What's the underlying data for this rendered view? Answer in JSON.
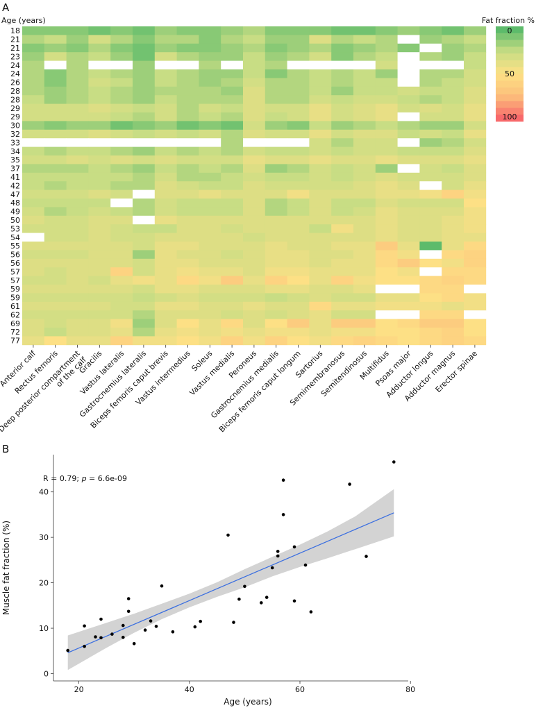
{
  "panel_a": {
    "label": "A",
    "row_axis_title": "Age (years)",
    "legend": {
      "title": "Fat fraction %",
      "ticks": [
        "0",
        "50",
        "100"
      ]
    }
  },
  "panel_b": {
    "label": "B",
    "annotation_prefix": "R = 0.79; ",
    "annotation_p": "p",
    "annotation_suffix": " = 6.6e-09"
  },
  "chart_data": [
    {
      "type": "heatmap",
      "title": "",
      "ylabel": "Age (years)",
      "value_label": "Fat fraction %",
      "color_scale": {
        "min": 0,
        "max": 100,
        "colors": [
          "#5dbb6b",
          "#c8dd84",
          "#fde085",
          "#fcbf7b",
          "#f8696b"
        ]
      },
      "rows": [
        "18",
        "21",
        "21",
        "23",
        "24",
        "24",
        "26",
        "28",
        "28",
        "29",
        "29",
        "30",
        "32",
        "33",
        "34",
        "35",
        "37",
        "41",
        "42",
        "47",
        "48",
        "49",
        "50",
        "53",
        "54",
        "55",
        "56",
        "56",
        "57",
        "57",
        "59",
        "59",
        "61",
        "62",
        "69",
        "72",
        "77"
      ],
      "columns": [
        "Anterior calf",
        "Rectus femoris",
        "Deep posterior compartment of the calf",
        "Gracilis",
        "Vastus lateralis",
        "Gastrocnemius lateralis",
        "Biceps femoris caput brevis",
        "Vastus intermedius",
        "Soleus",
        "Vastus medialis",
        "Peroneus",
        "Gastrocnemius medialis",
        "Biceps femoris caput longum",
        "Sartorius",
        "Semimembranosus",
        "Semitendinosus",
        "Multifidus",
        "Psoas major",
        "Adductor longus",
        "Adductor magnus",
        "Erector spinae"
      ],
      "missing_cells": [
        [
          4,
          1
        ],
        [
          4,
          3
        ],
        [
          4,
          4
        ],
        [
          4,
          6
        ],
        [
          4,
          7
        ],
        [
          4,
          9
        ],
        [
          4,
          12
        ],
        [
          4,
          13
        ],
        [
          4,
          14
        ],
        [
          4,
          15
        ],
        [
          4,
          17
        ],
        [
          4,
          18
        ],
        [
          4,
          19
        ],
        [
          2,
          18
        ],
        [
          1,
          17
        ],
        [
          3,
          17
        ],
        [
          5,
          17
        ],
        [
          6,
          17
        ],
        [
          10,
          17
        ],
        [
          13,
          0
        ],
        [
          13,
          1
        ],
        [
          13,
          2
        ],
        [
          13,
          3
        ],
        [
          13,
          4
        ],
        [
          13,
          5
        ],
        [
          13,
          6
        ],
        [
          13,
          7
        ],
        [
          13,
          8
        ],
        [
          13,
          10
        ],
        [
          13,
          11
        ],
        [
          13,
          12
        ],
        [
          13,
          17
        ],
        [
          16,
          17
        ],
        [
          18,
          18
        ],
        [
          19,
          5
        ],
        [
          20,
          4
        ],
        [
          22,
          5
        ],
        [
          24,
          0
        ],
        [
          26,
          18
        ],
        [
          28,
          18
        ],
        [
          30,
          16
        ],
        [
          30,
          17
        ],
        [
          30,
          20
        ],
        [
          33,
          16
        ],
        [
          33,
          17
        ],
        [
          33,
          20
        ]
      ],
      "values": [
        [
          10,
          10,
          10,
          5,
          10,
          5,
          15,
          10,
          10,
          15,
          20,
          10,
          10,
          10,
          5,
          5,
          10,
          15,
          10,
          5,
          15
        ],
        [
          20,
          25,
          15,
          30,
          20,
          10,
          20,
          20,
          10,
          20,
          25,
          15,
          15,
          35,
          20,
          25,
          20,
          20,
          15,
          20,
          25
        ],
        [
          10,
          15,
          10,
          20,
          10,
          5,
          15,
          10,
          10,
          15,
          20,
          10,
          15,
          20,
          10,
          15,
          20,
          10,
          10,
          15,
          20
        ],
        [
          15,
          30,
          20,
          25,
          15,
          5,
          30,
          20,
          15,
          15,
          25,
          15,
          20,
          30,
          10,
          20,
          25,
          20,
          20,
          15,
          25
        ],
        [
          20,
          0,
          20,
          0,
          0,
          15,
          0,
          0,
          20,
          0,
          25,
          20,
          0,
          0,
          0,
          0,
          30,
          0,
          0,
          0,
          25
        ],
        [
          20,
          10,
          20,
          25,
          20,
          15,
          25,
          20,
          15,
          15,
          25,
          10,
          20,
          25,
          20,
          25,
          15,
          25,
          20,
          20,
          30
        ],
        [
          20,
          10,
          20,
          30,
          25,
          15,
          25,
          20,
          15,
          20,
          30,
          20,
          20,
          25,
          20,
          25,
          25,
          20,
          20,
          25,
          30
        ],
        [
          20,
          15,
          20,
          25,
          20,
          15,
          20,
          20,
          20,
          15,
          35,
          20,
          20,
          25,
          15,
          25,
          25,
          30,
          25,
          25,
          35
        ],
        [
          25,
          15,
          20,
          25,
          20,
          15,
          25,
          20,
          20,
          20,
          35,
          20,
          20,
          30,
          25,
          30,
          30,
          25,
          20,
          25,
          35
        ],
        [
          30,
          30,
          30,
          35,
          30,
          25,
          30,
          20,
          30,
          25,
          35,
          30,
          30,
          40,
          30,
          35,
          40,
          30,
          35,
          30,
          40
        ],
        [
          30,
          30,
          30,
          30,
          25,
          20,
          30,
          20,
          25,
          20,
          35,
          25,
          30,
          40,
          30,
          35,
          40,
          0,
          30,
          30,
          40
        ],
        [
          15,
          10,
          15,
          15,
          5,
          10,
          15,
          5,
          10,
          5,
          30,
          15,
          10,
          25,
          15,
          20,
          25,
          20,
          15,
          15,
          30
        ],
        [
          30,
          30,
          30,
          35,
          30,
          25,
          30,
          25,
          30,
          20,
          35,
          30,
          30,
          40,
          30,
          35,
          35,
          25,
          30,
          25,
          40
        ],
        [
          0,
          0,
          0,
          0,
          0,
          0,
          0,
          0,
          0,
          20,
          0,
          0,
          0,
          30,
          20,
          30,
          30,
          0,
          15,
          20,
          30
        ],
        [
          25,
          20,
          25,
          25,
          20,
          15,
          25,
          20,
          25,
          20,
          30,
          25,
          25,
          30,
          25,
          30,
          30,
          25,
          25,
          25,
          35
        ],
        [
          30,
          30,
          35,
          30,
          35,
          30,
          35,
          30,
          30,
          30,
          40,
          35,
          35,
          40,
          35,
          35,
          40,
          35,
          35,
          35,
          40
        ],
        [
          20,
          20,
          20,
          25,
          20,
          15,
          25,
          20,
          25,
          20,
          35,
          15,
          20,
          30,
          25,
          30,
          15,
          30,
          30,
          25,
          35
        ],
        [
          25,
          25,
          25,
          25,
          25,
          20,
          30,
          20,
          20,
          25,
          30,
          25,
          25,
          30,
          25,
          30,
          35,
          30,
          30,
          30,
          35
        ],
        [
          25,
          20,
          25,
          25,
          20,
          20,
          35,
          30,
          25,
          25,
          35,
          30,
          30,
          30,
          30,
          35,
          40,
          35,
          40,
          30,
          40
        ],
        [
          30,
          30,
          30,
          35,
          30,
          0,
          35,
          35,
          40,
          35,
          35,
          35,
          45,
          35,
          35,
          35,
          40,
          40,
          45,
          60,
          45
        ],
        [
          25,
          25,
          25,
          25,
          0,
          20,
          30,
          25,
          25,
          25,
          35,
          20,
          25,
          35,
          25,
          25,
          35,
          30,
          30,
          30,
          50
        ],
        [
          30,
          20,
          25,
          30,
          25,
          20,
          30,
          25,
          25,
          25,
          35,
          20,
          25,
          35,
          25,
          30,
          40,
          35,
          35,
          35,
          45
        ],
        [
          35,
          30,
          30,
          35,
          35,
          0,
          40,
          35,
          35,
          35,
          35,
          35,
          35,
          35,
          35,
          35,
          40,
          35,
          35,
          40,
          45
        ],
        [
          30,
          30,
          30,
          35,
          30,
          25,
          25,
          35,
          35,
          30,
          35,
          35,
          35,
          25,
          45,
          35,
          40,
          35,
          35,
          40,
          45
        ],
        [
          0,
          30,
          30,
          35,
          30,
          30,
          35,
          35,
          35,
          35,
          30,
          35,
          35,
          35,
          35,
          35,
          40,
          35,
          35,
          40,
          40
        ],
        [
          35,
          35,
          35,
          35,
          35,
          30,
          40,
          40,
          35,
          35,
          35,
          40,
          35,
          35,
          40,
          40,
          65,
          40,
          0,
          40,
          55
        ],
        [
          30,
          30,
          30,
          35,
          35,
          15,
          40,
          35,
          35,
          30,
          35,
          40,
          40,
          35,
          35,
          40,
          55,
          45,
          65,
          55,
          60
        ],
        [
          35,
          35,
          35,
          35,
          35,
          30,
          40,
          40,
          35,
          35,
          35,
          40,
          40,
          35,
          40,
          40,
          55,
          65,
          50,
          45,
          60
        ],
        [
          35,
          30,
          35,
          35,
          60,
          30,
          40,
          45,
          40,
          40,
          35,
          45,
          45,
          40,
          40,
          40,
          50,
          45,
          0,
          55,
          55
        ],
        [
          30,
          30,
          35,
          30,
          40,
          45,
          40,
          55,
          45,
          65,
          40,
          60,
          50,
          40,
          60,
          45,
          50,
          50,
          55,
          60,
          55
        ],
        [
          35,
          35,
          35,
          35,
          35,
          30,
          40,
          40,
          35,
          35,
          35,
          40,
          40,
          35,
          35,
          40,
          0,
          0,
          55,
          55,
          0
        ],
        [
          30,
          30,
          30,
          30,
          30,
          25,
          30,
          35,
          30,
          30,
          30,
          25,
          30,
          35,
          30,
          30,
          40,
          40,
          50,
          55,
          45
        ],
        [
          35,
          35,
          35,
          35,
          30,
          30,
          40,
          40,
          35,
          35,
          40,
          35,
          35,
          55,
          40,
          40,
          45,
          45,
          45,
          40,
          45
        ],
        [
          30,
          30,
          30,
          30,
          30,
          20,
          35,
          35,
          35,
          30,
          35,
          30,
          35,
          40,
          30,
          30,
          0,
          0,
          55,
          55,
          0
        ],
        [
          35,
          30,
          35,
          35,
          45,
          15,
          35,
          50,
          40,
          55,
          35,
          50,
          65,
          40,
          65,
          65,
          50,
          55,
          65,
          65,
          50
        ],
        [
          35,
          25,
          35,
          35,
          40,
          20,
          40,
          45,
          40,
          45,
          40,
          45,
          45,
          40,
          45,
          45,
          50,
          50,
          55,
          60,
          50
        ],
        [
          40,
          50,
          40,
          40,
          60,
          45,
          45,
          50,
          45,
          60,
          45,
          60,
          50,
          45,
          55,
          60,
          55,
          50,
          55,
          60,
          55
        ]
      ]
    },
    {
      "type": "scatter",
      "title": "",
      "xlabel": "Age (years)",
      "ylabel": "Muscle fat fraction (%)",
      "xlim": [
        15.4,
        79.6
      ],
      "ylim": [
        -1.6,
        48.2
      ],
      "xticks": [
        20,
        40,
        60,
        80
      ],
      "yticks": [
        0,
        10,
        20,
        30,
        40
      ],
      "grid": false,
      "points": [
        [
          18,
          5.1
        ],
        [
          21,
          10.5
        ],
        [
          21,
          6.0
        ],
        [
          23,
          8.1
        ],
        [
          24,
          12.0
        ],
        [
          24,
          7.9
        ],
        [
          26,
          8.7
        ],
        [
          28,
          10.6
        ],
        [
          28,
          8.0
        ],
        [
          29,
          16.5
        ],
        [
          29,
          13.7
        ],
        [
          30,
          6.6
        ],
        [
          32,
          9.6
        ],
        [
          33,
          11.6
        ],
        [
          34,
          10.4
        ],
        [
          35,
          19.3
        ],
        [
          37,
          9.2
        ],
        [
          41,
          10.3
        ],
        [
          42,
          11.5
        ],
        [
          47,
          30.5
        ],
        [
          48,
          11.3
        ],
        [
          49,
          16.4
        ],
        [
          50,
          19.2
        ],
        [
          53,
          15.6
        ],
        [
          54,
          16.8
        ],
        [
          55,
          23.3
        ],
        [
          56,
          26.9
        ],
        [
          56,
          25.9
        ],
        [
          57,
          42.6
        ],
        [
          57,
          35.0
        ],
        [
          59,
          27.9
        ],
        [
          59,
          16.0
        ],
        [
          61,
          23.9
        ],
        [
          62,
          13.6
        ],
        [
          69,
          41.7
        ],
        [
          72,
          25.8
        ],
        [
          77,
          46.6
        ]
      ],
      "regression": {
        "x": [
          18,
          77
        ],
        "y": [
          4.6,
          35.4
        ],
        "color": "#3b6fe0"
      },
      "confidence_band": {
        "x": [
          18,
          25,
          30,
          35,
          40,
          45,
          50,
          55,
          60,
          65,
          70,
          77
        ],
        "lower": [
          0.8,
          5.7,
          9.0,
          12.0,
          14.6,
          16.9,
          19.0,
          21.4,
          23.5,
          25.4,
          27.4,
          30.2
        ],
        "upper": [
          8.4,
          11.2,
          13.2,
          15.4,
          17.6,
          20.1,
          23.0,
          25.7,
          28.4,
          31.3,
          34.6,
          40.6
        ]
      }
    }
  ]
}
